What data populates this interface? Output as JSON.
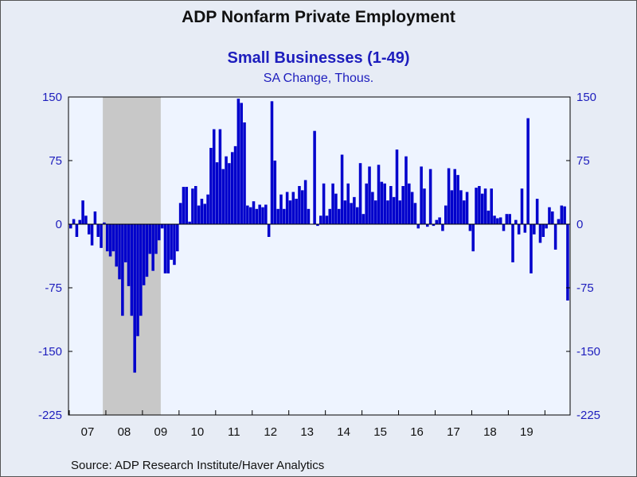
{
  "chart_data": {
    "type": "bar",
    "title": "ADP Nonfarm Private Employment",
    "subtitle": "Small Businesses (1-49)",
    "unit_label": "SA Change, Thous.",
    "source": "Source:  ADP Research Institute/Haver Analytics",
    "ylim": [
      -225,
      150
    ],
    "yticks": [
      "150",
      "75",
      "0",
      "-75",
      "-150",
      "-225"
    ],
    "ytick_values": [
      150,
      75,
      0,
      -75,
      -150,
      -225
    ],
    "xtick_labels": [
      "07",
      "08",
      "09",
      "10",
      "11",
      "12",
      "13",
      "14",
      "15",
      "16",
      "17",
      "18",
      "19"
    ],
    "start": "2007-01",
    "end": "2019-12",
    "recession": [
      "2007-12",
      "2009-06"
    ],
    "colors": {
      "bars": "#0000cc",
      "plot_bg": "#eef4ff",
      "recession": "#c8c8c8",
      "axis_text": "#1d1dbd"
    },
    "values": [
      -5,
      6,
      -15,
      5,
      28,
      10,
      -12,
      -25,
      15,
      -15,
      -28,
      2,
      -32,
      -38,
      -32,
      -50,
      -65,
      -108,
      -45,
      -73,
      -108,
      -175,
      -132,
      -108,
      -72,
      -62,
      -35,
      -55,
      -35,
      -19,
      -5,
      -58,
      -58,
      -42,
      -48,
      -32,
      25,
      44,
      44,
      3,
      42,
      45,
      22,
      30,
      24,
      35,
      90,
      112,
      73,
      112,
      65,
      80,
      72,
      85,
      92,
      148,
      143,
      120,
      22,
      20,
      27,
      18,
      23,
      20,
      23,
      -15,
      145,
      75,
      18,
      35,
      18,
      38,
      28,
      38,
      30,
      45,
      40,
      52,
      18,
      0,
      110,
      -2,
      10,
      48,
      10,
      18,
      48,
      36,
      18,
      82,
      28,
      48,
      25,
      32,
      20,
      72,
      12,
      48,
      68,
      38,
      28,
      70,
      50,
      48,
      28,
      45,
      32,
      88,
      28,
      45,
      80,
      48,
      38,
      25,
      -5,
      68,
      42,
      -3,
      65,
      -2,
      5,
      8,
      -8,
      22,
      66,
      40,
      65,
      58,
      40,
      28,
      38,
      -8,
      -32,
      43,
      45,
      36,
      42,
      16,
      42,
      10,
      7,
      8,
      -8,
      12,
      12,
      -45,
      5,
      -12,
      42,
      -10,
      125,
      -58,
      -12,
      30,
      -22,
      -15,
      -5,
      20,
      15,
      -30,
      6,
      22,
      21,
      -90
    ]
  }
}
